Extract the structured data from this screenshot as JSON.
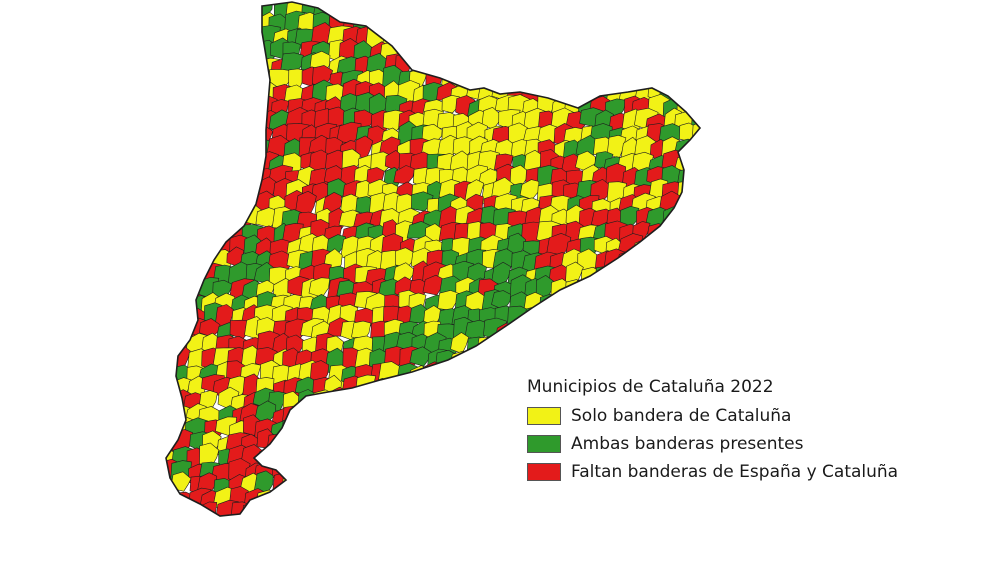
{
  "legend": {
    "title": "Municipios de Cataluña 2022",
    "items": [
      {
        "key": "solo",
        "label": "Solo bandera de Cataluña",
        "color": "#f2f216"
      },
      {
        "key": "ambas",
        "label": "Ambas banderas presentes",
        "color": "#2f9a2c"
      },
      {
        "key": "faltan",
        "label": "Faltan banderas de España y Cataluña",
        "color": "#e31b1b"
      }
    ]
  },
  "map": {
    "region": "Cataluña",
    "border_color": "#1e1e1e",
    "background": "#ffffff"
  }
}
